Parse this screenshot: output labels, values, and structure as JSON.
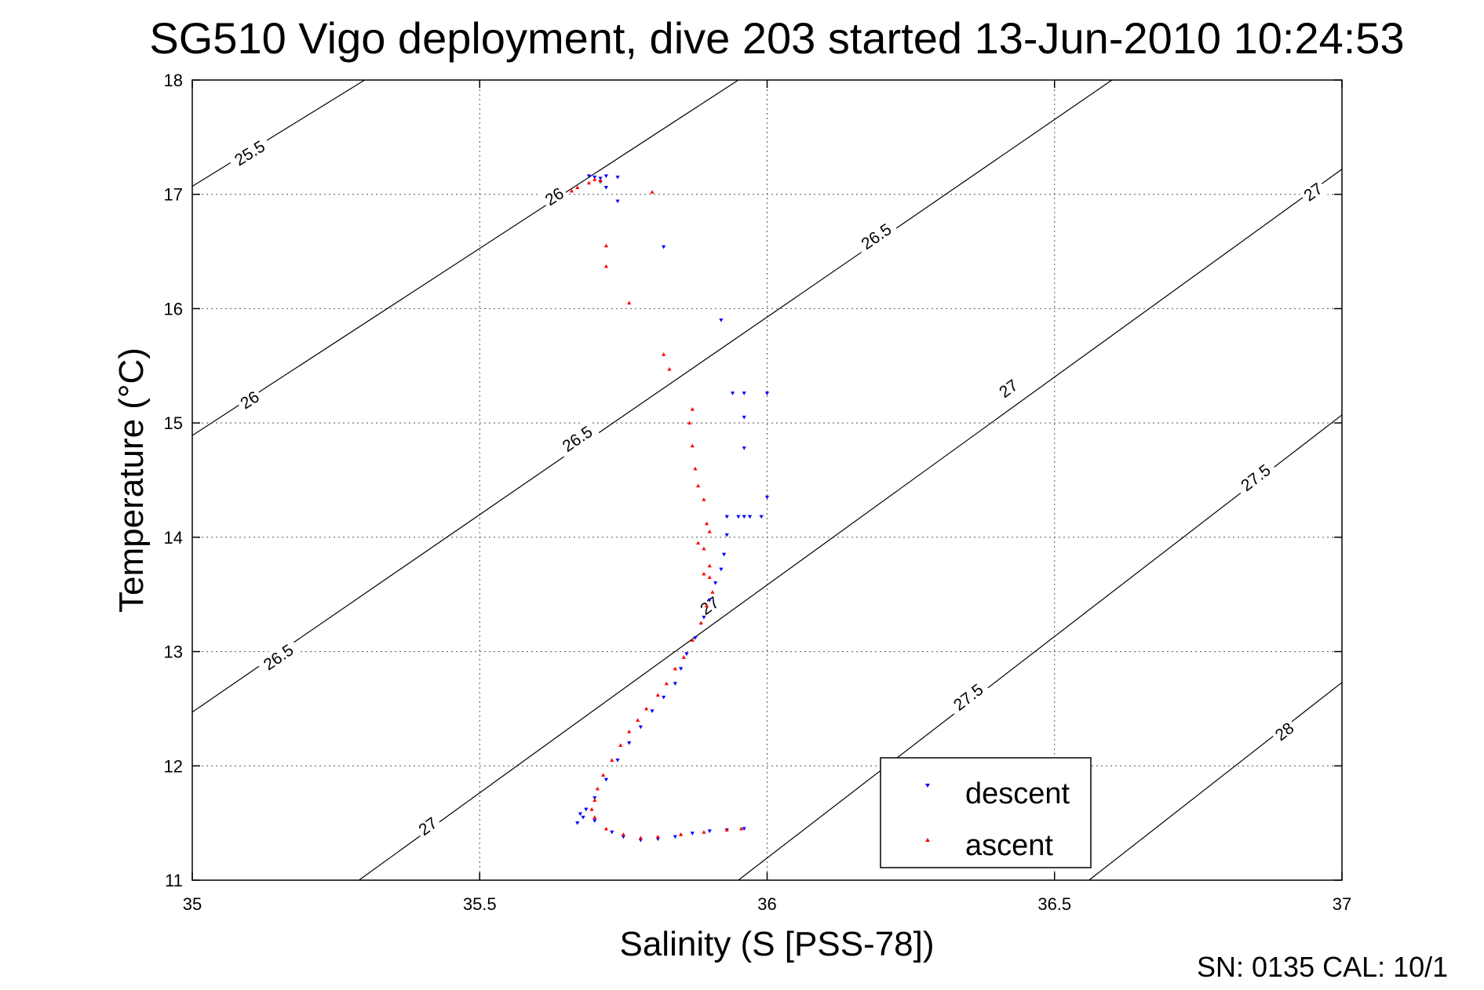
{
  "chart_data": {
    "type": "scatter",
    "title": "SG510 Vigo deployment, dive 203 started 13-Jun-2010 10:24:53",
    "xlabel": "Salinity (S [PSS-78])",
    "ylabel": "Temperature (°C)",
    "xlim": [
      35,
      37
    ],
    "ylim": [
      11,
      18
    ],
    "x_ticks": [
      "35",
      "35.5",
      "36",
      "36.5",
      "37"
    ],
    "y_ticks": [
      "11",
      "12",
      "13",
      "14",
      "15",
      "16",
      "17",
      "18"
    ],
    "grid": true,
    "legend_position": "bottom-right",
    "footer": "SN: 0135  CAL: 10/1",
    "contours": [
      {
        "label": "25.5",
        "points": [
          [
            35,
            17.07
          ],
          [
            35.3,
            18
          ]
        ],
        "labels_at": [
          [
            35.1,
            17.36
          ]
        ]
      },
      {
        "label": "26",
        "points": [
          [
            35,
            14.89
          ],
          [
            35.95,
            18
          ]
        ],
        "labels_at": [
          [
            35.1,
            15.2
          ],
          [
            35.63,
            16.98
          ]
        ]
      },
      {
        "label": "26.5",
        "points": [
          [
            35,
            12.47
          ],
          [
            36.6,
            18
          ]
        ],
        "labels_at": [
          [
            35.15,
            12.95
          ],
          [
            35.67,
            14.86
          ],
          [
            36.19,
            16.63
          ]
        ]
      },
      {
        "label": "27",
        "points": [
          [
            35.29,
            11
          ],
          [
            37,
            17.22
          ]
        ],
        "labels_at": [
          [
            35.41,
            11.47
          ],
          [
            35.9,
            13.4
          ],
          [
            36.42,
            15.3
          ],
          [
            36.95,
            17.02
          ]
        ]
      },
      {
        "label": "27.5",
        "points": [
          [
            35.95,
            11
          ],
          [
            37,
            15.07
          ]
        ],
        "labels_at": [
          [
            36.35,
            12.6
          ],
          [
            36.85,
            14.52
          ]
        ]
      },
      {
        "label": "28",
        "points": [
          [
            36.56,
            11
          ],
          [
            37,
            12.73
          ]
        ],
        "labels_at": [
          [
            36.9,
            12.3
          ]
        ]
      }
    ],
    "series": [
      {
        "name": "descent",
        "color": "#0000ff",
        "marker": "down-triangle",
        "points": [
          [
            35.69,
            17.16
          ],
          [
            35.7,
            17.15
          ],
          [
            35.71,
            17.14
          ],
          [
            35.72,
            17.16
          ],
          [
            35.74,
            17.15
          ],
          [
            35.71,
            17.11
          ],
          [
            35.72,
            17.06
          ],
          [
            35.74,
            16.94
          ],
          [
            35.82,
            16.54
          ],
          [
            35.92,
            15.9
          ],
          [
            35.94,
            15.26
          ],
          [
            35.96,
            15.26
          ],
          [
            36.0,
            15.26
          ],
          [
            35.96,
            15.05
          ],
          [
            35.96,
            14.78
          ],
          [
            36.0,
            14.35
          ],
          [
            35.93,
            14.18
          ],
          [
            35.95,
            14.18
          ],
          [
            35.96,
            14.18
          ],
          [
            35.97,
            14.18
          ],
          [
            35.99,
            14.18
          ],
          [
            35.93,
            14.02
          ],
          [
            35.925,
            13.85
          ],
          [
            35.92,
            13.72
          ],
          [
            35.91,
            13.6
          ],
          [
            35.9,
            13.45
          ],
          [
            35.89,
            13.3
          ],
          [
            35.875,
            13.12
          ],
          [
            35.86,
            12.98
          ],
          [
            35.85,
            12.85
          ],
          [
            35.84,
            12.72
          ],
          [
            35.82,
            12.6
          ],
          [
            35.8,
            12.48
          ],
          [
            35.78,
            12.34
          ],
          [
            35.76,
            12.2
          ],
          [
            35.74,
            12.05
          ],
          [
            35.72,
            11.88
          ],
          [
            35.7,
            11.72
          ],
          [
            35.685,
            11.62
          ],
          [
            35.68,
            11.55
          ],
          [
            35.67,
            11.5
          ],
          [
            35.675,
            11.58
          ],
          [
            35.7,
            11.52
          ],
          [
            35.73,
            11.42
          ],
          [
            35.75,
            11.38
          ],
          [
            35.78,
            11.35
          ],
          [
            35.81,
            11.36
          ],
          [
            35.84,
            11.38
          ],
          [
            35.87,
            11.41
          ],
          [
            35.9,
            11.43
          ],
          [
            35.93,
            11.44
          ],
          [
            35.96,
            11.45
          ]
        ]
      },
      {
        "name": "ascent",
        "color": "#ff0000",
        "marker": "up-triangle",
        "points": [
          [
            35.66,
            17.03
          ],
          [
            35.67,
            17.06
          ],
          [
            35.69,
            17.1
          ],
          [
            35.7,
            17.13
          ],
          [
            35.71,
            17.12
          ],
          [
            35.8,
            17.02
          ],
          [
            35.72,
            16.55
          ],
          [
            35.72,
            16.37
          ],
          [
            35.76,
            16.05
          ],
          [
            35.82,
            15.6
          ],
          [
            35.83,
            15.47
          ],
          [
            35.87,
            15.12
          ],
          [
            35.865,
            15.0
          ],
          [
            35.87,
            14.8
          ],
          [
            35.875,
            14.6
          ],
          [
            35.88,
            14.45
          ],
          [
            35.89,
            14.33
          ],
          [
            35.895,
            14.12
          ],
          [
            35.9,
            14.05
          ],
          [
            35.88,
            13.95
          ],
          [
            35.89,
            13.9
          ],
          [
            35.9,
            13.75
          ],
          [
            35.89,
            13.68
          ],
          [
            35.9,
            13.65
          ],
          [
            35.905,
            13.52
          ],
          [
            35.895,
            13.4
          ],
          [
            35.885,
            13.25
          ],
          [
            35.87,
            13.1
          ],
          [
            35.855,
            12.95
          ],
          [
            35.84,
            12.85
          ],
          [
            35.825,
            12.72
          ],
          [
            35.81,
            12.62
          ],
          [
            35.79,
            12.5
          ],
          [
            35.775,
            12.4
          ],
          [
            35.76,
            12.3
          ],
          [
            35.745,
            12.18
          ],
          [
            35.73,
            12.05
          ],
          [
            35.715,
            11.92
          ],
          [
            35.705,
            11.8
          ],
          [
            35.7,
            11.7
          ],
          [
            35.695,
            11.62
          ],
          [
            35.7,
            11.55
          ],
          [
            35.72,
            11.45
          ],
          [
            35.75,
            11.4
          ],
          [
            35.78,
            11.37
          ],
          [
            35.81,
            11.38
          ],
          [
            35.85,
            11.4
          ],
          [
            35.89,
            11.42
          ],
          [
            35.93,
            11.44
          ],
          [
            35.955,
            11.45
          ]
        ]
      }
    ]
  }
}
